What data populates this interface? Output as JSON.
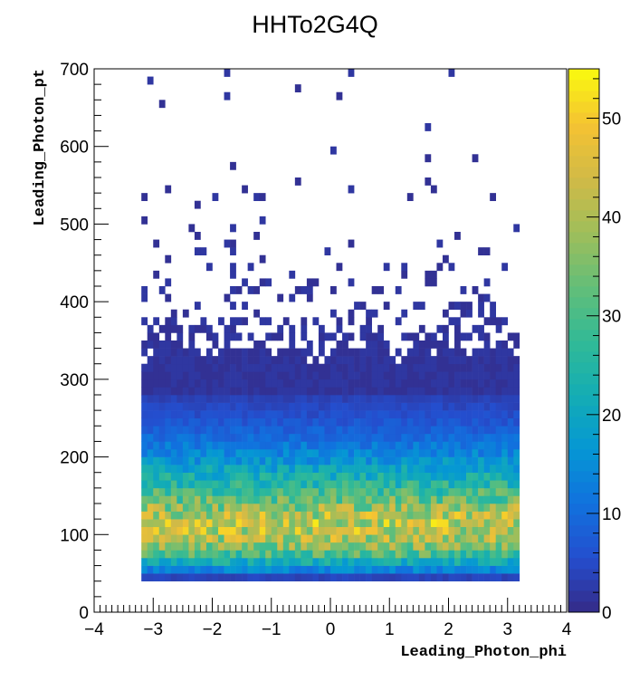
{
  "chart_data": {
    "type": "heatmap",
    "title": "HHTo2G4Q",
    "xlabel": "Leading_Photon_phi",
    "ylabel": "Leading_Photon_pt",
    "xlim": [
      -4,
      4
    ],
    "ylim": [
      0,
      700
    ],
    "x_ticks": [
      -4,
      -3,
      -2,
      -1,
      0,
      1,
      2,
      3,
      4
    ],
    "y_ticks": [
      0,
      100,
      200,
      300,
      400,
      500,
      600,
      700
    ],
    "x_tick_labels": [
      "−4",
      "−3",
      "−2",
      "−1",
      "0",
      "1",
      "2",
      "3",
      "4"
    ],
    "y_tick_labels": [
      "0",
      "100",
      "200",
      "300",
      "400",
      "500",
      "600",
      "700"
    ],
    "colorbar": {
      "range": [
        0,
        55
      ],
      "ticks": [
        0,
        10,
        20,
        30,
        40,
        50
      ],
      "tick_labels": [
        "0",
        "10",
        "20",
        "30",
        "40",
        "50"
      ]
    },
    "bins": {
      "x_range": [
        -3.2,
        3.2
      ],
      "x_bins": 64,
      "y_range": [
        0,
        700
      ],
      "y_bins": 70
    },
    "pt_profile": [
      [
        40,
        0
      ],
      [
        45,
        4
      ],
      [
        50,
        9
      ],
      [
        55,
        14
      ],
      [
        60,
        18
      ],
      [
        65,
        22
      ],
      [
        70,
        26
      ],
      [
        75,
        30
      ],
      [
        80,
        33
      ],
      [
        85,
        36
      ],
      [
        90,
        38
      ],
      [
        95,
        40
      ],
      [
        100,
        41
      ],
      [
        105,
        42
      ],
      [
        110,
        43
      ],
      [
        115,
        43
      ],
      [
        120,
        42
      ],
      [
        125,
        41
      ],
      [
        130,
        39
      ],
      [
        140,
        35
      ],
      [
        150,
        31
      ],
      [
        160,
        27
      ],
      [
        170,
        24
      ],
      [
        180,
        21
      ],
      [
        190,
        18
      ],
      [
        200,
        15
      ],
      [
        210,
        13
      ],
      [
        220,
        11
      ],
      [
        230,
        9
      ],
      [
        240,
        7.5
      ],
      [
        250,
        6
      ],
      [
        260,
        5
      ],
      [
        270,
        4
      ],
      [
        280,
        3.2
      ],
      [
        290,
        2.5
      ],
      [
        300,
        2
      ],
      [
        320,
        1.3
      ],
      [
        340,
        0.85
      ],
      [
        360,
        0.55
      ],
      [
        380,
        0.36
      ],
      [
        400,
        0.24
      ],
      [
        430,
        0.14
      ],
      [
        460,
        0.09
      ],
      [
        500,
        0.05
      ],
      [
        550,
        0.03
      ],
      [
        600,
        0.02
      ],
      [
        650,
        0.015
      ],
      [
        700,
        0.01
      ]
    ]
  }
}
